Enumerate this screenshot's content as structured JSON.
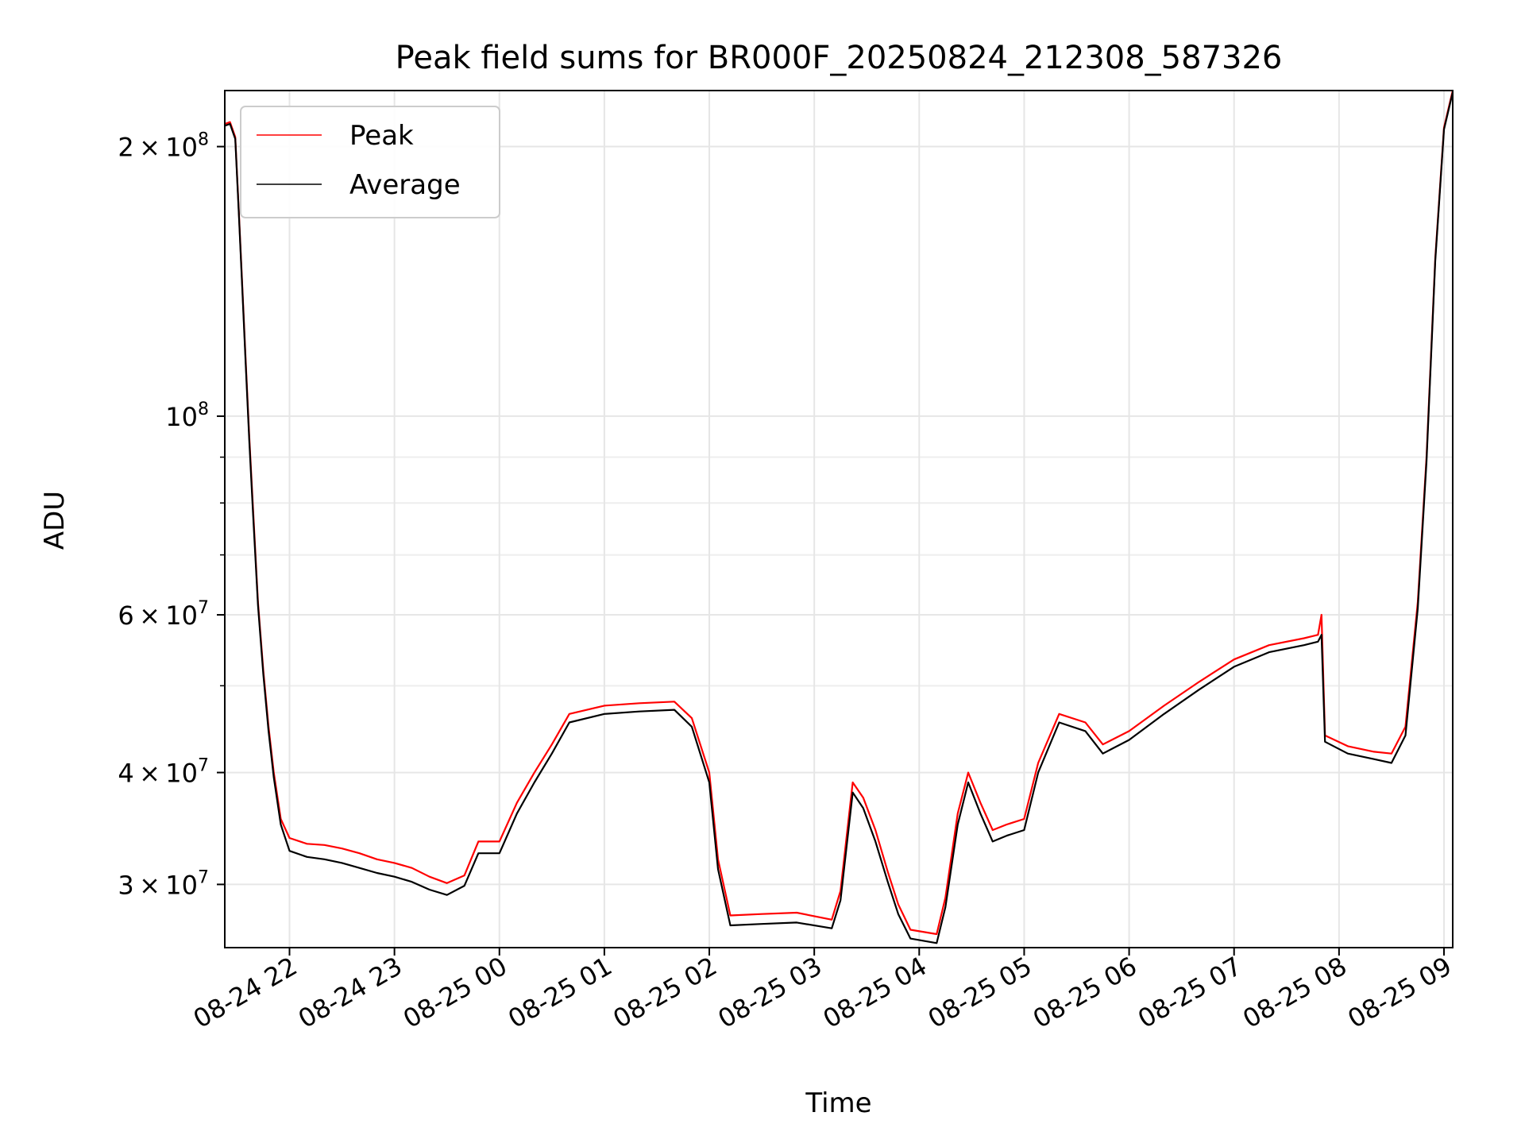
{
  "chart_data": {
    "type": "line",
    "title": "Peak field sums for BR000F_20250824_212308_587326",
    "xlabel": "Time",
    "ylabel": "ADU",
    "yscale": "log",
    "ylim": [
      25500000,
      231000000
    ],
    "xlim": [
      "2025-08-24 21:23",
      "2025-08-25 09:05"
    ],
    "grid": true,
    "legend_position": "upper left",
    "x_ticks": [
      {
        "label": "08-24 22",
        "t": "2025-08-24 22:00"
      },
      {
        "label": "08-24 23",
        "t": "2025-08-24 23:00"
      },
      {
        "label": "08-25 00",
        "t": "2025-08-25 00:00"
      },
      {
        "label": "08-25 01",
        "t": "2025-08-25 01:00"
      },
      {
        "label": "08-25 02",
        "t": "2025-08-25 02:00"
      },
      {
        "label": "08-25 03",
        "t": "2025-08-25 03:00"
      },
      {
        "label": "08-25 04",
        "t": "2025-08-25 04:00"
      },
      {
        "label": "08-25 05",
        "t": "2025-08-25 05:00"
      },
      {
        "label": "08-25 06",
        "t": "2025-08-25 06:00"
      },
      {
        "label": "08-25 07",
        "t": "2025-08-25 07:00"
      },
      {
        "label": "08-25 08",
        "t": "2025-08-25 08:00"
      },
      {
        "label": "08-25 09",
        "t": "2025-08-25 09:00"
      }
    ],
    "y_ticks": [
      {
        "value": 30000000,
        "mantissa": "3",
        "exp": "7"
      },
      {
        "value": 40000000,
        "mantissa": "4",
        "exp": "7"
      },
      {
        "value": 60000000,
        "mantissa": "6",
        "exp": "7"
      },
      {
        "value": 100000000,
        "mantissa": "",
        "exp": "8"
      },
      {
        "value": 200000000,
        "mantissa": "2",
        "exp": "8"
      }
    ],
    "y_minor_ticks": [
      50000000,
      70000000,
      80000000,
      90000000
    ],
    "series": [
      {
        "name": "Peak",
        "color": "#ff0000",
        "points": [
          [
            "2025-08-24 21:23",
            212000000
          ],
          [
            "2025-08-24 21:26",
            213000000
          ],
          [
            "2025-08-24 21:29",
            205000000
          ],
          [
            "2025-08-24 21:31",
            170000000
          ],
          [
            "2025-08-24 21:33",
            140000000
          ],
          [
            "2025-08-24 21:35",
            115000000
          ],
          [
            "2025-08-24 21:37",
            95000000
          ],
          [
            "2025-08-24 21:39",
            80000000
          ],
          [
            "2025-08-24 21:42",
            62000000
          ],
          [
            "2025-08-24 21:45",
            52000000
          ],
          [
            "2025-08-24 21:48",
            45000000
          ],
          [
            "2025-08-24 21:51",
            40000000
          ],
          [
            "2025-08-24 21:55",
            35500000
          ],
          [
            "2025-08-24 22:00",
            33800000
          ],
          [
            "2025-08-24 22:10",
            33300000
          ],
          [
            "2025-08-24 22:20",
            33200000
          ],
          [
            "2025-08-24 22:30",
            32900000
          ],
          [
            "2025-08-24 22:40",
            32500000
          ],
          [
            "2025-08-24 22:50",
            32000000
          ],
          [
            "2025-08-24 23:00",
            31700000
          ],
          [
            "2025-08-24 23:10",
            31300000
          ],
          [
            "2025-08-24 23:20",
            30600000
          ],
          [
            "2025-08-24 23:30",
            30100000
          ],
          [
            "2025-08-24 23:40",
            30700000
          ],
          [
            "2025-08-24 23:48",
            33500000
          ],
          [
            "2025-08-25 00:00",
            33500000
          ],
          [
            "2025-08-25 00:10",
            37000000
          ],
          [
            "2025-08-25 00:20",
            40000000
          ],
          [
            "2025-08-25 00:30",
            43000000
          ],
          [
            "2025-08-25 00:40",
            46500000
          ],
          [
            "2025-08-25 01:00",
            47500000
          ],
          [
            "2025-08-25 01:20",
            47800000
          ],
          [
            "2025-08-25 01:40",
            48000000
          ],
          [
            "2025-08-25 01:50",
            46000000
          ],
          [
            "2025-08-25 02:00",
            40000000
          ],
          [
            "2025-08-25 02:05",
            32000000
          ],
          [
            "2025-08-25 02:12",
            27700000
          ],
          [
            "2025-08-25 02:30",
            27800000
          ],
          [
            "2025-08-25 02:50",
            27900000
          ],
          [
            "2025-08-25 03:10",
            27400000
          ],
          [
            "2025-08-25 03:15",
            29500000
          ],
          [
            "2025-08-25 03:22",
            39000000
          ],
          [
            "2025-08-25 03:28",
            37500000
          ],
          [
            "2025-08-25 03:35",
            34500000
          ],
          [
            "2025-08-25 03:42",
            31000000
          ],
          [
            "2025-08-25 03:48",
            28500000
          ],
          [
            "2025-08-25 03:55",
            26700000
          ],
          [
            "2025-08-25 04:10",
            26400000
          ],
          [
            "2025-08-25 04:15",
            29000000
          ],
          [
            "2025-08-25 04:22",
            36000000
          ],
          [
            "2025-08-25 04:28",
            40000000
          ],
          [
            "2025-08-25 04:35",
            37000000
          ],
          [
            "2025-08-25 04:42",
            34500000
          ],
          [
            "2025-08-25 04:50",
            35000000
          ],
          [
            "2025-08-25 05:00",
            35500000
          ],
          [
            "2025-08-25 05:08",
            41000000
          ],
          [
            "2025-08-25 05:20",
            46500000
          ],
          [
            "2025-08-25 05:35",
            45500000
          ],
          [
            "2025-08-25 05:45",
            43000000
          ],
          [
            "2025-08-25 06:00",
            44500000
          ],
          [
            "2025-08-25 06:20",
            47500000
          ],
          [
            "2025-08-25 06:40",
            50500000
          ],
          [
            "2025-08-25 07:00",
            53500000
          ],
          [
            "2025-08-25 07:20",
            55500000
          ],
          [
            "2025-08-25 07:40",
            56500000
          ],
          [
            "2025-08-25 07:48",
            57000000
          ],
          [
            "2025-08-25 07:50",
            60000000
          ],
          [
            "2025-08-25 07:52",
            44000000
          ],
          [
            "2025-08-25 08:05",
            42800000
          ],
          [
            "2025-08-25 08:20",
            42200000
          ],
          [
            "2025-08-25 08:30",
            42000000
          ],
          [
            "2025-08-25 08:38",
            45000000
          ],
          [
            "2025-08-25 08:45",
            62000000
          ],
          [
            "2025-08-25 08:50",
            90000000
          ],
          [
            "2025-08-25 08:55",
            150000000
          ],
          [
            "2025-08-25 09:00",
            210000000
          ],
          [
            "2025-08-25 09:05",
            231000000
          ]
        ]
      },
      {
        "name": "Average",
        "color": "#000000",
        "points": [
          [
            "2025-08-24 21:23",
            211000000
          ],
          [
            "2025-08-24 21:26",
            212000000
          ],
          [
            "2025-08-24 21:29",
            204000000
          ],
          [
            "2025-08-24 21:31",
            169000000
          ],
          [
            "2025-08-24 21:33",
            139000000
          ],
          [
            "2025-08-24 21:35",
            114000000
          ],
          [
            "2025-08-24 21:37",
            94000000
          ],
          [
            "2025-08-24 21:39",
            79000000
          ],
          [
            "2025-08-24 21:42",
            61500000
          ],
          [
            "2025-08-24 21:45",
            51500000
          ],
          [
            "2025-08-24 21:48",
            44500000
          ],
          [
            "2025-08-24 21:51",
            39500000
          ],
          [
            "2025-08-24 21:55",
            35000000
          ],
          [
            "2025-08-24 22:00",
            32700000
          ],
          [
            "2025-08-24 22:10",
            32200000
          ],
          [
            "2025-08-24 22:20",
            32000000
          ],
          [
            "2025-08-24 22:30",
            31700000
          ],
          [
            "2025-08-24 22:40",
            31300000
          ],
          [
            "2025-08-24 22:50",
            30900000
          ],
          [
            "2025-08-24 23:00",
            30600000
          ],
          [
            "2025-08-24 23:10",
            30200000
          ],
          [
            "2025-08-24 23:20",
            29600000
          ],
          [
            "2025-08-24 23:30",
            29200000
          ],
          [
            "2025-08-24 23:40",
            29900000
          ],
          [
            "2025-08-24 23:48",
            32500000
          ],
          [
            "2025-08-25 00:00",
            32500000
          ],
          [
            "2025-08-25 00:10",
            36000000
          ],
          [
            "2025-08-25 00:20",
            39000000
          ],
          [
            "2025-08-25 00:30",
            42000000
          ],
          [
            "2025-08-25 00:40",
            45500000
          ],
          [
            "2025-08-25 01:00",
            46500000
          ],
          [
            "2025-08-25 01:20",
            46800000
          ],
          [
            "2025-08-25 01:40",
            47000000
          ],
          [
            "2025-08-25 01:50",
            45000000
          ],
          [
            "2025-08-25 02:00",
            39000000
          ],
          [
            "2025-08-25 02:05",
            31200000
          ],
          [
            "2025-08-25 02:12",
            27000000
          ],
          [
            "2025-08-25 02:30",
            27100000
          ],
          [
            "2025-08-25 02:50",
            27200000
          ],
          [
            "2025-08-25 03:10",
            26800000
          ],
          [
            "2025-08-25 03:15",
            28800000
          ],
          [
            "2025-08-25 03:22",
            38000000
          ],
          [
            "2025-08-25 03:28",
            36500000
          ],
          [
            "2025-08-25 03:35",
            33500000
          ],
          [
            "2025-08-25 03:42",
            30200000
          ],
          [
            "2025-08-25 03:48",
            27800000
          ],
          [
            "2025-08-25 03:55",
            26100000
          ],
          [
            "2025-08-25 04:10",
            25800000
          ],
          [
            "2025-08-25 04:15",
            28300000
          ],
          [
            "2025-08-25 04:22",
            35000000
          ],
          [
            "2025-08-25 04:28",
            39000000
          ],
          [
            "2025-08-25 04:35",
            36000000
          ],
          [
            "2025-08-25 04:42",
            33500000
          ],
          [
            "2025-08-25 04:50",
            34000000
          ],
          [
            "2025-08-25 05:00",
            34500000
          ],
          [
            "2025-08-25 05:08",
            40000000
          ],
          [
            "2025-08-25 05:20",
            45500000
          ],
          [
            "2025-08-25 05:35",
            44500000
          ],
          [
            "2025-08-25 05:45",
            42000000
          ],
          [
            "2025-08-25 06:00",
            43500000
          ],
          [
            "2025-08-25 06:20",
            46500000
          ],
          [
            "2025-08-25 06:40",
            49500000
          ],
          [
            "2025-08-25 07:00",
            52500000
          ],
          [
            "2025-08-25 07:20",
            54500000
          ],
          [
            "2025-08-25 07:40",
            55500000
          ],
          [
            "2025-08-25 07:48",
            56000000
          ],
          [
            "2025-08-25 07:50",
            57000000
          ],
          [
            "2025-08-25 07:52",
            43300000
          ],
          [
            "2025-08-25 08:05",
            42000000
          ],
          [
            "2025-08-25 08:20",
            41400000
          ],
          [
            "2025-08-25 08:30",
            41000000
          ],
          [
            "2025-08-25 08:38",
            44000000
          ],
          [
            "2025-08-25 08:45",
            61000000
          ],
          [
            "2025-08-25 08:50",
            89000000
          ],
          [
            "2025-08-25 08:55",
            149000000
          ],
          [
            "2025-08-25 09:00",
            209000000
          ],
          [
            "2025-08-25 09:05",
            230000000
          ]
        ]
      }
    ]
  }
}
